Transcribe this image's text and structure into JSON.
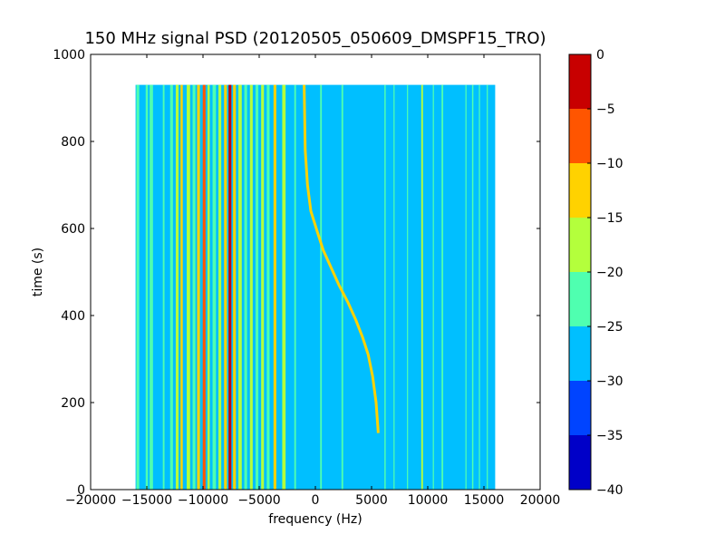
{
  "chart_data": {
    "type": "heatmap",
    "title": "150 MHz signal PSD (20120505_050609_DMSPF15_TRO)",
    "xlabel": "frequency (Hz)",
    "ylabel": "time (s)",
    "xlim": [
      -20000,
      20000
    ],
    "ylim": [
      0,
      1000
    ],
    "xticks": [
      -20000,
      -15000,
      -10000,
      -5000,
      0,
      5000,
      10000,
      15000,
      20000
    ],
    "xtick_labels": [
      "−20000",
      "−15000",
      "−10000",
      "−5000",
      "0",
      "5000",
      "10000",
      "15000",
      "20000"
    ],
    "yticks": [
      0,
      200,
      400,
      600,
      800,
      1000
    ],
    "ytick_labels": [
      "0",
      "200",
      "400",
      "600",
      "800",
      "1000"
    ],
    "data_extent": {
      "freq": [
        -16000,
        16000
      ],
      "time": [
        0,
        930
      ]
    },
    "background_level": -27,
    "colorbar": {
      "levels": [
        -40,
        -35,
        -30,
        -25,
        -20,
        -15,
        -10,
        -5,
        0
      ],
      "tick_labels": [
        "−40",
        "−35",
        "−30",
        "−25",
        "−20",
        "−15",
        "−10",
        "−5",
        "0"
      ],
      "colors": [
        "#0000c8",
        "#0044ff",
        "#00bfff",
        "#4fffb0",
        "#b4ff3c",
        "#ffd200",
        "#ff5500",
        "#c80000"
      ]
    },
    "vertical_lines": [
      {
        "freq": -15800,
        "width": 250,
        "level": -22
      },
      {
        "freq": -15000,
        "width": 200,
        "level": -22
      },
      {
        "freq": -14600,
        "width": 300,
        "level": -22
      },
      {
        "freq": -13500,
        "width": 150,
        "level": -22
      },
      {
        "freq": -12800,
        "width": 250,
        "level": -22
      },
      {
        "freq": -12300,
        "width": 250,
        "level": -17
      },
      {
        "freq": -11900,
        "width": 200,
        "level": -12
      },
      {
        "freq": -11300,
        "width": 300,
        "level": -17
      },
      {
        "freq": -10800,
        "width": 250,
        "level": -22
      },
      {
        "freq": -10400,
        "width": 250,
        "level": -12
      },
      {
        "freq": -9900,
        "width": 250,
        "level": -7
      },
      {
        "freq": -9500,
        "width": 200,
        "level": -17
      },
      {
        "freq": -9000,
        "width": 300,
        "level": -22
      },
      {
        "freq": -8500,
        "width": 250,
        "level": -17
      },
      {
        "freq": -8000,
        "width": 250,
        "level": -12
      },
      {
        "freq": -7600,
        "width": 250,
        "level": -2
      },
      {
        "freq": -7200,
        "width": 250,
        "level": -12
      },
      {
        "freq": -6700,
        "width": 300,
        "level": -17
      },
      {
        "freq": -6200,
        "width": 250,
        "level": -22
      },
      {
        "freq": -5700,
        "width": 250,
        "level": -17
      },
      {
        "freq": -5200,
        "width": 250,
        "level": -22
      },
      {
        "freq": -4700,
        "width": 250,
        "level": -17
      },
      {
        "freq": -4200,
        "width": 250,
        "level": -22
      },
      {
        "freq": -3600,
        "width": 250,
        "level": -12
      },
      {
        "freq": -2800,
        "width": 300,
        "level": -17
      },
      {
        "freq": -1800,
        "width": 150,
        "level": -22
      },
      {
        "freq": 500,
        "width": 150,
        "level": -22
      },
      {
        "freq": 2400,
        "width": 150,
        "level": -22
      },
      {
        "freq": 6200,
        "width": 120,
        "level": -22
      },
      {
        "freq": 7000,
        "width": 100,
        "level": -22
      },
      {
        "freq": 8200,
        "width": 100,
        "level": -22
      },
      {
        "freq": 9500,
        "width": 150,
        "level": -17
      },
      {
        "freq": 10500,
        "width": 100,
        "level": -22
      },
      {
        "freq": 11300,
        "width": 150,
        "level": -22
      },
      {
        "freq": 13400,
        "width": 100,
        "level": -22
      },
      {
        "freq": 14000,
        "width": 120,
        "level": -22
      },
      {
        "freq": 14600,
        "width": 100,
        "level": -22
      },
      {
        "freq": 15300,
        "width": 100,
        "level": -22
      }
    ],
    "doppler_track": {
      "level": -15,
      "points": [
        {
          "freq": -1000,
          "time": 930
        },
        {
          "freq": -900,
          "time": 780
        },
        {
          "freq": -700,
          "time": 700
        },
        {
          "freq": -400,
          "time": 640
        },
        {
          "freq": 200,
          "time": 590
        },
        {
          "freq": 700,
          "time": 550
        },
        {
          "freq": 1400,
          "time": 510
        },
        {
          "freq": 2100,
          "time": 470
        },
        {
          "freq": 2900,
          "time": 430
        },
        {
          "freq": 3600,
          "time": 390
        },
        {
          "freq": 4200,
          "time": 350
        },
        {
          "freq": 4700,
          "time": 310
        },
        {
          "freq": 5100,
          "time": 260
        },
        {
          "freq": 5400,
          "time": 200
        },
        {
          "freq": 5600,
          "time": 130
        }
      ]
    }
  }
}
